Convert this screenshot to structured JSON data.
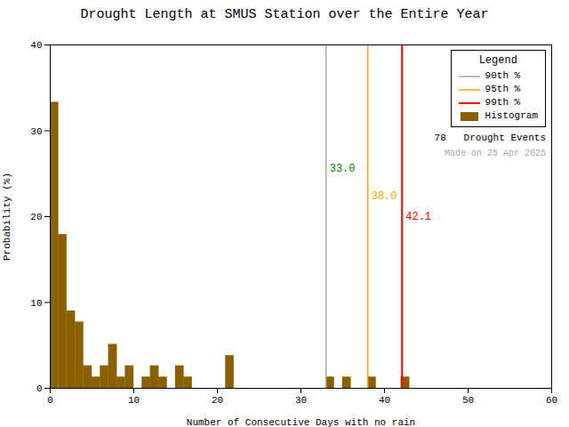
{
  "chart_data": {
    "type": "histogram",
    "title": "Drought Length at SMUS Station over the Entire Year",
    "xlabel": "Number of Consecutive Days with no rain",
    "ylabel": "Probability (%)",
    "bins": [
      0,
      1,
      2,
      3,
      4,
      5,
      6,
      7,
      8,
      9,
      10,
      11,
      12,
      13,
      14,
      15,
      16,
      17,
      18,
      19,
      20,
      21,
      22,
      23,
      24,
      25,
      26,
      27,
      28,
      29,
      30,
      31,
      32,
      33,
      34,
      35,
      36,
      37,
      38,
      39,
      40,
      41,
      42,
      43,
      44,
      45,
      46,
      47,
      48,
      49,
      50,
      51,
      52,
      53,
      54,
      55,
      56,
      57,
      58,
      59,
      60
    ],
    "values": [
      33.3,
      17.9,
      9.0,
      7.7,
      2.6,
      1.3,
      2.6,
      5.1,
      1.3,
      2.6,
      0.0,
      1.3,
      2.6,
      1.3,
      0.0,
      2.6,
      1.3,
      0.0,
      0.0,
      0.0,
      0.0,
      3.8,
      0.0,
      0.0,
      0.0,
      0.0,
      0.0,
      0.0,
      0.0,
      0.0,
      0.0,
      0.0,
      0.0,
      1.3,
      0.0,
      1.3,
      0.0,
      0.0,
      1.3,
      0.0,
      0.0,
      0.0,
      1.3,
      0.0,
      0.0,
      0.0,
      0.0,
      0.0,
      0.0,
      0.0,
      0.0,
      0.0,
      0.0,
      0.0,
      0.0,
      0.0,
      0.0,
      0.0,
      0.0,
      0.0
    ],
    "color": "#8B6000",
    "series": [
      {
        "name": "90th %",
        "type": "vline",
        "x": 33.0,
        "color": "#aaaaaa",
        "label": "33.0",
        "label_color": "green"
      },
      {
        "name": "95th %",
        "type": "vline",
        "x": 38.0,
        "color": "orange",
        "label": "38.0",
        "label_color": "orange"
      },
      {
        "name": "99th %",
        "type": "vline",
        "x": 42.1,
        "color": "red",
        "label": "42.1",
        "label_color": "red"
      },
      {
        "name": "Histogram",
        "type": "bar",
        "color": "#8B6000"
      }
    ],
    "xlim": [
      0,
      60
    ],
    "ylim": [
      0,
      40
    ],
    "xticks": [
      0,
      10,
      20,
      30,
      40,
      50,
      60
    ],
    "yticks": [
      0,
      10,
      20,
      30,
      40
    ],
    "grid": false,
    "legend": "upper right",
    "legend_title": "Legend",
    "annotations": [
      {
        "text": "78   Drought Events"
      },
      {
        "text": "Made on 25 Apr 2025",
        "color": "#aaaaaa"
      }
    ]
  }
}
